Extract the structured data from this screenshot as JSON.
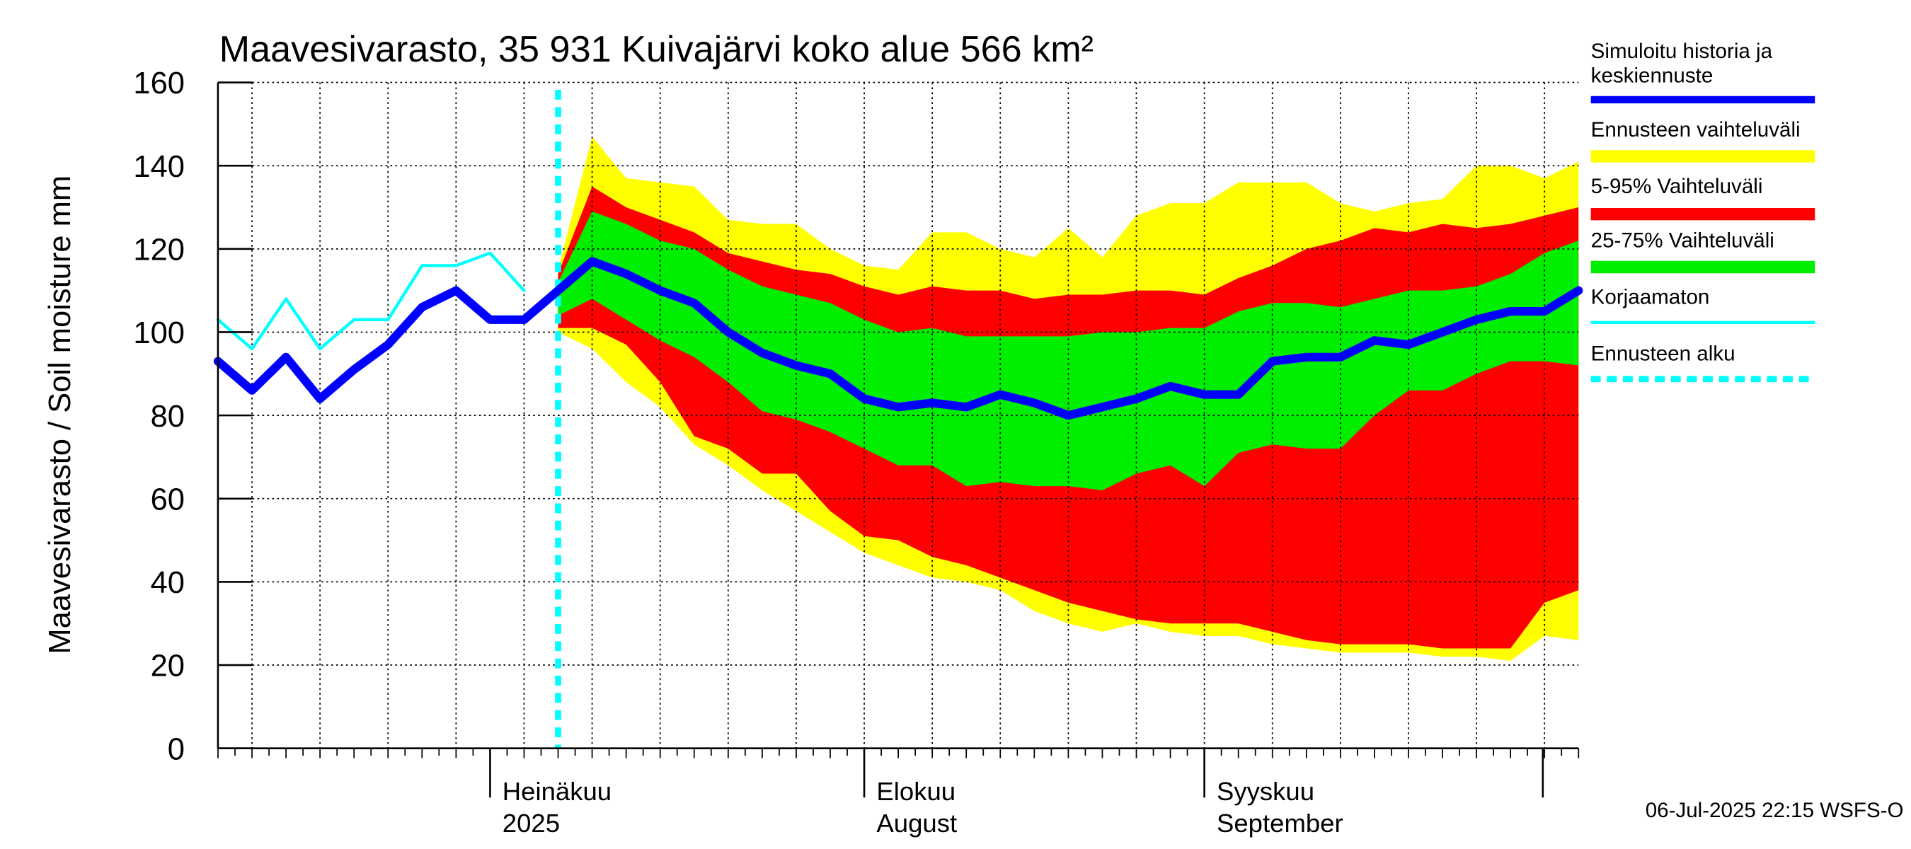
{
  "chart_data": {
    "type": "band-line",
    "title": "Maavesivarasto, 35 931 Kuivajärvi koko alue 566 km²",
    "y_label": "Maavesivarasto / Soil moisture   mm",
    "footer": "06-Jul-2025 22:15 WSFS-O",
    "categories": [
      null,
      null,
      null,
      null,
      null,
      null,
      null,
      null,
      "Heinäkuu",
      null,
      null,
      null,
      null,
      null,
      null,
      null,
      null,
      null,
      null,
      "Elokuu",
      null,
      null,
      null,
      null,
      null,
      null,
      null,
      null,
      null,
      "Syyskuu",
      null,
      null,
      null,
      null,
      null,
      null,
      null,
      null,
      null,
      null,
      null
    ],
    "categories_2": [
      null,
      null,
      null,
      null,
      null,
      null,
      null,
      null,
      "2025",
      null,
      null,
      null,
      null,
      null,
      null,
      null,
      null,
      null,
      null,
      "August",
      null,
      null,
      null,
      null,
      null,
      null,
      null,
      null,
      null,
      "September",
      null,
      null,
      null,
      null,
      null,
      null,
      null,
      null,
      null,
      null,
      null
    ],
    "ylim": [
      0,
      160
    ],
    "yticks": [
      0,
      20,
      40,
      60,
      80,
      100,
      120,
      140,
      160
    ],
    "grid": true,
    "bands": [
      {
        "name": "Ennusteen vaihteluväli",
        "color": "#ffff00",
        "upper": [
          null,
          null,
          null,
          null,
          null,
          null,
          null,
          null,
          null,
          null,
          115,
          147,
          137,
          136,
          135,
          127,
          126,
          126,
          120,
          116,
          115,
          124,
          124,
          120,
          118,
          125,
          118,
          128,
          131,
          131,
          136,
          136,
          136,
          131,
          129,
          131,
          132,
          140,
          140,
          137,
          141
        ],
        "lower": [
          null,
          null,
          null,
          null,
          null,
          null,
          null,
          null,
          null,
          null,
          100,
          96,
          88,
          82,
          73,
          68,
          62,
          57,
          52,
          47,
          44,
          41,
          40,
          38,
          33,
          30,
          28,
          30,
          28,
          27,
          27,
          25,
          24,
          23,
          23,
          23,
          22,
          22,
          21,
          27,
          26
        ]
      },
      {
        "name": "5-95% Vaihteluväli",
        "color": "#ff0000",
        "upper": [
          null,
          null,
          null,
          null,
          null,
          null,
          null,
          null,
          null,
          null,
          114,
          135,
          130,
          127,
          124,
          119,
          117,
          115,
          114,
          111,
          109,
          111,
          110,
          110,
          108,
          109,
          109,
          110,
          110,
          109,
          113,
          116,
          120,
          122,
          125,
          124,
          126,
          125,
          126,
          128,
          130
        ],
        "lower": [
          null,
          null,
          null,
          null,
          null,
          null,
          null,
          null,
          null,
          null,
          101,
          101,
          97,
          88,
          75,
          72,
          66,
          66,
          57,
          51,
          50,
          46,
          44,
          41,
          38,
          35,
          33,
          31,
          30,
          30,
          30,
          28,
          26,
          25,
          25,
          25,
          24,
          24,
          24,
          35,
          38
        ]
      },
      {
        "name": "25-75% Vaihteluväli",
        "color": "#00ee00",
        "upper": [
          null,
          null,
          null,
          null,
          null,
          null,
          null,
          null,
          null,
          null,
          112,
          129,
          126,
          122,
          120,
          115,
          111,
          109,
          107,
          103,
          100,
          101,
          99,
          99,
          99,
          99,
          100,
          100,
          101,
          101,
          105,
          107,
          107,
          106,
          108,
          110,
          110,
          111,
          114,
          119,
          122
        ],
        "lower": [
          null,
          null,
          null,
          null,
          null,
          null,
          null,
          null,
          null,
          null,
          104,
          108,
          103,
          98,
          94,
          88,
          81,
          79,
          76,
          72,
          68,
          68,
          63,
          64,
          63,
          63,
          62,
          66,
          68,
          63,
          71,
          73,
          72,
          72,
          80,
          86,
          86,
          90,
          93,
          93,
          92
        ]
      }
    ],
    "series": [
      {
        "name": "Simuloitu historia ja keskiennuste",
        "color": "#0000ff",
        "values": [
          93,
          86,
          94,
          84,
          91,
          97,
          106,
          110,
          103,
          103,
          110,
          117,
          114,
          110,
          107,
          100,
          95,
          92,
          90,
          84,
          82,
          83,
          82,
          85,
          83,
          80,
          82,
          84,
          87,
          85,
          85,
          93,
          94,
          94,
          98,
          97,
          100,
          103,
          105,
          105,
          110
        ]
      },
      {
        "name": "Korjaamaton",
        "color": "#00ffff",
        "values": [
          103,
          96,
          108,
          96,
          103,
          103,
          116,
          116,
          119,
          110,
          null,
          null,
          null,
          null,
          null,
          null,
          null,
          null,
          null,
          null,
          null,
          null,
          null,
          null,
          null,
          null,
          null,
          null,
          null,
          null,
          null,
          null,
          null,
          null,
          null,
          null,
          null,
          null,
          null,
          null,
          null
        ]
      }
    ],
    "forecast_start": {
      "name": "Ennusteen alku",
      "color": "#00ffff"
    }
  }
}
